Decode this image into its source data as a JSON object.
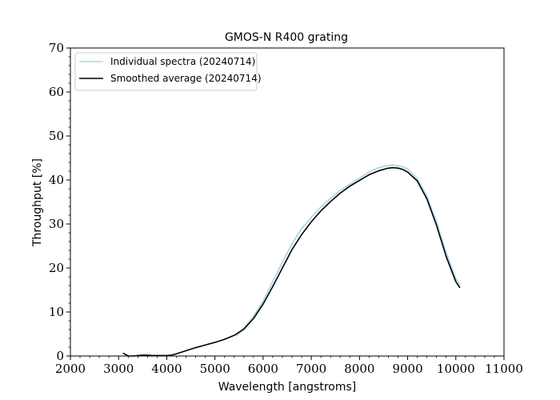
{
  "chart_data": {
    "type": "line",
    "title": "GMOS-N R400 grating",
    "xlabel": "Wavelength [angstroms]",
    "ylabel": "Throughput [%]",
    "xlim": [
      2000,
      11000
    ],
    "ylim": [
      0,
      70
    ],
    "x_ticks": [
      "2000",
      "3000",
      "4000",
      "5000",
      "6000",
      "7000",
      "8000",
      "9000",
      "10000",
      "11000"
    ],
    "y_ticks": [
      "0",
      "10",
      "20",
      "30",
      "40",
      "50",
      "60",
      "70"
    ],
    "legend_position": "top-left",
    "grid": false,
    "series": [
      {
        "name": "Individual spectra (20240714)",
        "color": "#add8e6",
        "x": [
          5450,
          5600,
          5800,
          6000,
          6200,
          6400,
          6600,
          6800,
          7000,
          7200,
          7400,
          7600,
          7800,
          8000,
          8200,
          8400,
          8600,
          8700,
          8800,
          8900,
          9000,
          9200,
          9400,
          9600,
          9800,
          10000,
          10080
        ],
        "y": [
          4.6,
          6.3,
          9.0,
          12.5,
          16.9,
          21.3,
          25.5,
          29.0,
          31.5,
          33.9,
          35.8,
          37.6,
          39.0,
          40.4,
          41.8,
          42.8,
          43.3,
          43.4,
          43.2,
          43.0,
          42.5,
          40.3,
          36.3,
          30.5,
          23.5,
          17.6,
          16.3
        ]
      },
      {
        "name": "Smoothed average (20240714)",
        "color": "#000000",
        "x": [
          3100,
          3150,
          3200,
          3300,
          3400,
          3500,
          3600,
          3700,
          3800,
          3900,
          4000,
          4100,
          4200,
          4400,
          4600,
          4800,
          5000,
          5200,
          5400,
          5600,
          5800,
          6000,
          6200,
          6400,
          6600,
          6800,
          7000,
          7200,
          7400,
          7600,
          7800,
          8000,
          8200,
          8400,
          8600,
          8700,
          8800,
          8900,
          9000,
          9200,
          9400,
          9600,
          9800,
          10000,
          10080
        ],
        "y": [
          0.6,
          0.3,
          0.0,
          0.0,
          0.1,
          0.2,
          0.2,
          0.1,
          0.1,
          0.1,
          0.1,
          0.2,
          0.5,
          1.2,
          1.9,
          2.5,
          3.1,
          3.8,
          4.7,
          6.1,
          8.5,
          11.8,
          15.8,
          20.0,
          24.2,
          27.6,
          30.5,
          33.0,
          35.1,
          37.0,
          38.6,
          39.9,
          41.2,
          42.1,
          42.7,
          42.8,
          42.7,
          42.4,
          41.8,
          39.8,
          35.7,
          29.7,
          22.6,
          16.9,
          15.6
        ]
      }
    ]
  }
}
